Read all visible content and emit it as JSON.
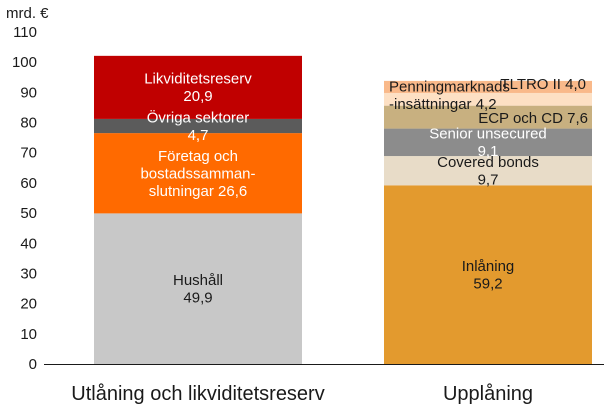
{
  "chart_data": {
    "type": "bar",
    "stacked": true,
    "unit_label": "mrd. €",
    "ylim": [
      0,
      110
    ],
    "yticks": [
      0,
      10,
      20,
      30,
      40,
      50,
      60,
      70,
      80,
      90,
      100,
      110
    ],
    "grid": false,
    "categories": [
      "Utlåning och likviditetsreserv",
      "Upplåning"
    ],
    "bars": [
      {
        "category": "Utlåning och likviditetsreserv",
        "segments": [
          {
            "label_lines": [
              "Hushåll",
              "49,9"
            ],
            "value": 49.9,
            "color": "#c8c8c8",
            "text_color": "#1a1a1a"
          },
          {
            "label_lines": [
              "Företag och",
              "bostadssamman-",
              "slutningar 26,6"
            ],
            "value": 26.6,
            "color": "#ff6a00",
            "text_color": "#ffffff"
          },
          {
            "label_lines": [
              "Övriga sektorer",
              "4,7"
            ],
            "value": 4.7,
            "color": "#5b5b5b",
            "text_color": "#ffffff"
          },
          {
            "label_lines": [
              "Likviditetsreserv",
              "20,9"
            ],
            "value": 20.9,
            "color": "#c00000",
            "text_color": "#ffffff"
          }
        ]
      },
      {
        "category": "Upplåning",
        "segments": [
          {
            "label_lines": [
              "Inlåning",
              "59,2"
            ],
            "value": 59.2,
            "color": "#e39a2e",
            "text_color": "#1a1a1a"
          },
          {
            "label_lines": [
              "Covered bonds",
              "9,7"
            ],
            "value": 9.7,
            "color": "#e8dcc8",
            "text_color": "#1a1a1a"
          },
          {
            "label_lines": [
              "Senior unsecured",
              "9,1"
            ],
            "value": 9.1,
            "color": "#8c8c8c",
            "text_color": "#ffffff"
          },
          {
            "label_lines": [
              "ECP och CD 7,6"
            ],
            "value": 7.6,
            "color": "#c8b080",
            "text_color": "#1a1a1a"
          },
          {
            "label_lines": [
              "Penningmarknads",
              "-insättningar 4,2"
            ],
            "value": 4.2,
            "color": "#fde0c4",
            "text_color": "#1a1a1a"
          },
          {
            "label_lines": [
              "TLTRO II 4,0"
            ],
            "value": 4.0,
            "color": "#f9b98a",
            "text_color": "#1a1a1a"
          }
        ]
      }
    ]
  }
}
